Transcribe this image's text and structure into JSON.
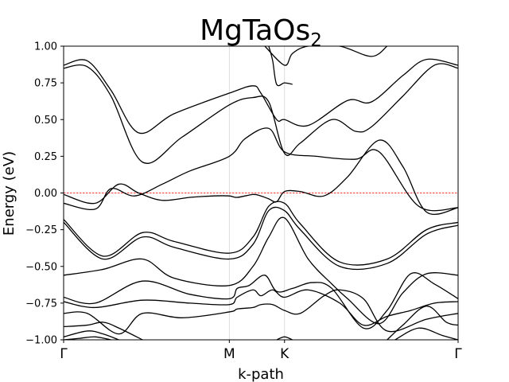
{
  "chart_data": {
    "type": "line",
    "title": "MgTaOs",
    "title_subscript": "2",
    "xlabel": "k-path",
    "ylabel": "Energy (eV)",
    "ylim": [
      -1.0,
      1.0
    ],
    "xlim": [
      0,
      1
    ],
    "yticks": [
      -1.0,
      -0.75,
      -0.5,
      -0.25,
      0.0,
      0.25,
      0.5,
      0.75,
      1.0
    ],
    "ytick_labels": [
      "−1.00",
      "−0.75",
      "−0.50",
      "−0.25",
      "0.00",
      "0.25",
      "0.50",
      "0.75",
      "1.00"
    ],
    "kpoints": [
      {
        "label": "Γ",
        "x": 0.0
      },
      {
        "label": "M",
        "x": 0.42
      },
      {
        "label": "K",
        "x": 0.56
      },
      {
        "label": "Γ",
        "x": 1.0
      }
    ],
    "fermi_level": 0.0,
    "grid": "vertical lines at high-symmetry points",
    "series": [
      {
        "x": [
          0.0,
          0.06,
          0.12,
          0.19,
          0.28,
          0.42,
          0.48,
          0.5,
          0.54,
          0.56,
          0.62,
          0.72,
          0.78,
          0.86,
          0.92,
          1.0
        ],
        "values": [
          0.87,
          0.9,
          0.7,
          0.41,
          0.54,
          0.68,
          0.73,
          0.68,
          0.5,
          0.5,
          0.46,
          0.63,
          0.62,
          0.8,
          0.91,
          0.87
        ]
      },
      {
        "x": [
          0.0,
          0.06,
          0.12,
          0.2,
          0.3,
          0.42,
          0.48,
          0.52,
          0.56,
          0.6,
          0.68,
          0.74,
          0.78,
          0.86,
          0.94,
          1.0
        ],
        "values": [
          0.85,
          0.86,
          0.66,
          0.21,
          0.38,
          0.6,
          0.65,
          0.62,
          0.27,
          0.34,
          0.5,
          0.42,
          0.45,
          0.66,
          0.87,
          0.85
        ]
      },
      {
        "x": [
          0.51,
          0.56,
          0.58,
          0.62,
          0.7,
          0.78,
          0.82
        ],
        "values": [
          1.0,
          0.87,
          0.95,
          1.0,
          1.0,
          0.93,
          1.0
        ]
      },
      {
        "x": [
          0.52,
          0.53,
          0.54,
          0.56,
          0.58
        ],
        "values": [
          1.0,
          0.9,
          0.74,
          0.75,
          0.74
        ]
      },
      {
        "x": [
          0.0,
          0.08,
          0.12,
          0.18,
          0.25,
          0.32,
          0.42,
          0.46,
          0.52,
          0.56,
          0.64,
          0.74,
          0.8,
          0.9,
          1.0
        ],
        "values": [
          -0.07,
          -0.11,
          0.03,
          -0.02,
          0.06,
          0.15,
          0.25,
          0.37,
          0.44,
          0.28,
          0.25,
          0.23,
          0.28,
          -0.09,
          -0.1
        ]
      },
      {
        "x": [
          0.0,
          0.08,
          0.14,
          0.19,
          0.25,
          0.32,
          0.38,
          0.42,
          0.44,
          0.48,
          0.5,
          0.52,
          0.54,
          0.56,
          0.6,
          0.66,
          0.72,
          0.8,
          0.86,
          0.92,
          1.0
        ],
        "values": [
          -0.01,
          -0.07,
          0.06,
          0.0,
          -0.05,
          -0.03,
          -0.02,
          -0.02,
          -0.03,
          -0.01,
          -0.02,
          -0.04,
          -0.06,
          0.01,
          0.01,
          -0.02,
          0.11,
          0.36,
          0.18,
          -0.13,
          -0.1
        ]
      },
      {
        "x": [
          0.0,
          0.1,
          0.2,
          0.28,
          0.42,
          0.48,
          0.52,
          0.56,
          0.6,
          0.7,
          0.82,
          0.92,
          1.0
        ],
        "values": [
          -0.18,
          -0.43,
          -0.27,
          -0.33,
          -0.41,
          -0.3,
          -0.09,
          -0.07,
          -0.21,
          -0.47,
          -0.45,
          -0.25,
          -0.2
        ]
      },
      {
        "x": [
          0.0,
          0.1,
          0.2,
          0.28,
          0.42,
          0.48,
          0.52,
          0.56,
          0.6,
          0.7,
          0.82,
          0.92,
          1.0
        ],
        "values": [
          -0.2,
          -0.45,
          -0.3,
          -0.37,
          -0.45,
          -0.35,
          -0.12,
          -0.12,
          -0.25,
          -0.5,
          -0.48,
          -0.28,
          -0.22
        ]
      },
      {
        "x": [
          0.0,
          0.1,
          0.2,
          0.28,
          0.42,
          0.48,
          0.52,
          0.56,
          0.62,
          0.68,
          0.72,
          0.8,
          0.86,
          0.92,
          1.0
        ],
        "values": [
          -0.56,
          -0.52,
          -0.45,
          -0.58,
          -0.63,
          -0.5,
          -0.3,
          -0.17,
          -0.45,
          -0.62,
          -0.72,
          -0.89,
          -0.68,
          -0.55,
          -0.56
        ]
      },
      {
        "x": [
          0.0,
          0.08,
          0.2,
          0.32,
          0.42,
          0.44,
          0.47,
          0.51,
          0.54,
          0.58,
          0.63,
          0.68,
          0.76,
          0.82,
          0.88,
          0.94,
          1.0
        ],
        "values": [
          -0.71,
          -0.75,
          -0.6,
          -0.69,
          -0.72,
          -0.65,
          -0.63,
          -0.56,
          -0.67,
          -0.65,
          -0.61,
          -0.65,
          -0.92,
          -0.8,
          -0.55,
          -0.62,
          -0.72
        ]
      },
      {
        "x": [
          0.0,
          0.08,
          0.2,
          0.32,
          0.42,
          0.44,
          0.48,
          0.5,
          0.53,
          0.56,
          0.62,
          0.7,
          0.76,
          0.82,
          0.88,
          0.94,
          1.0
        ],
        "values": [
          -0.74,
          -0.78,
          -0.73,
          -0.75,
          -0.76,
          -0.71,
          -0.66,
          -0.7,
          -0.66,
          -0.71,
          -0.66,
          -0.75,
          -0.9,
          -0.84,
          -0.8,
          -0.75,
          -0.74
        ]
      },
      {
        "x": [
          0.0,
          0.06,
          0.14,
          0.2,
          0.3,
          0.42,
          0.44,
          0.48,
          0.5,
          0.53,
          0.56,
          0.6,
          0.66,
          0.7,
          0.76,
          0.82,
          0.92,
          1.0
        ],
        "values": [
          -0.82,
          -0.82,
          -0.96,
          -0.82,
          -0.85,
          -0.81,
          -0.79,
          -0.78,
          -0.76,
          -0.76,
          -0.8,
          -0.82,
          -0.7,
          -0.66,
          -0.72,
          -0.94,
          -0.86,
          -0.82
        ]
      },
      {
        "x": [
          0.0,
          0.06,
          0.1,
          0.14,
          0.2
        ],
        "values": [
          -0.91,
          -0.9,
          -0.88,
          -0.92,
          -1.0
        ]
      },
      {
        "x": [
          0.82,
          0.86,
          0.92,
          0.97,
          1.0
        ],
        "values": [
          -1.0,
          -0.9,
          -0.77,
          -0.88,
          -0.9
        ]
      },
      {
        "x": [
          0.0,
          0.06,
          0.1,
          0.14
        ],
        "values": [
          -0.98,
          -0.94,
          -0.96,
          -1.0
        ]
      },
      {
        "x": [
          0.84,
          0.9,
          0.96,
          1.0
        ],
        "values": [
          -1.0,
          -0.92,
          -0.97,
          -1.0
        ]
      },
      {
        "x": [
          0.0,
          0.04,
          0.08,
          0.12
        ],
        "values": [
          -1.0,
          -0.99,
          -0.98,
          -1.0
        ]
      },
      {
        "x": [
          0.54,
          0.56,
          0.58
        ],
        "values": [
          -1.0,
          -0.98,
          -1.0
        ]
      }
    ]
  }
}
